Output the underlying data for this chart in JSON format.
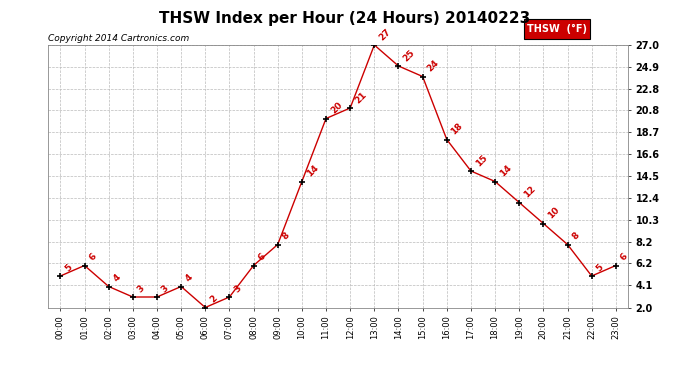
{
  "title": "THSW Index per Hour (24 Hours) 20140223",
  "copyright": "Copyright 2014 Cartronics.com",
  "legend_label": "THSW  (°F)",
  "hours": [
    "00:00",
    "01:00",
    "02:00",
    "03:00",
    "04:00",
    "05:00",
    "06:00",
    "07:00",
    "08:00",
    "09:00",
    "10:00",
    "11:00",
    "12:00",
    "13:00",
    "14:00",
    "15:00",
    "16:00",
    "17:00",
    "18:00",
    "19:00",
    "20:00",
    "21:00",
    "22:00",
    "23:00"
  ],
  "values": [
    5,
    6,
    4,
    3,
    3,
    4,
    2,
    3,
    6,
    8,
    14,
    20,
    21,
    27,
    25,
    24,
    18,
    15,
    14,
    12,
    10,
    8,
    5,
    6
  ],
  "ylim": [
    2.0,
    27.0
  ],
  "yticks": [
    2.0,
    4.1,
    6.2,
    8.2,
    10.3,
    12.4,
    14.5,
    16.6,
    18.7,
    20.8,
    22.8,
    24.9,
    27.0
  ],
  "line_color": "#cc0000",
  "marker_color": "#000000",
  "label_color": "#cc0000",
  "grid_color": "#bbbbbb",
  "bg_color": "#ffffff",
  "legend_bg": "#cc0000",
  "legend_text_color": "#ffffff",
  "title_fontsize": 11,
  "copyright_fontsize": 6.5,
  "label_fontsize": 6.5
}
